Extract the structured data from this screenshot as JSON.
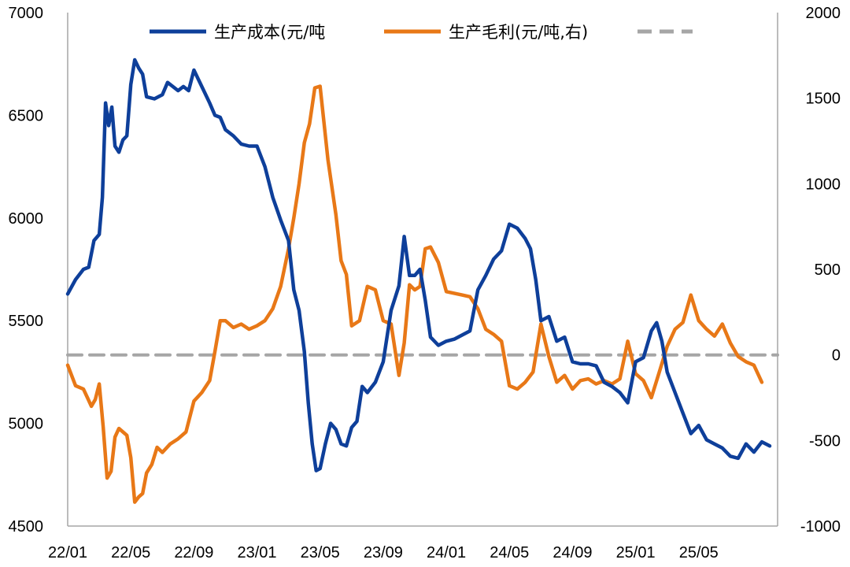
{
  "chart_data": {
    "type": "line",
    "title": "",
    "xlabel": "",
    "ylabel": "",
    "x_ticks": [
      "22/01",
      "22/05",
      "22/09",
      "23/01",
      "23/05",
      "23/09",
      "24/01",
      "24/05",
      "24/09",
      "25/01",
      "25/05"
    ],
    "y_left": {
      "min": 4500,
      "max": 7000,
      "ticks": [
        4500,
        5000,
        5500,
        6000,
        6500,
        7000
      ]
    },
    "y_right": {
      "min": -1000,
      "max": 2000,
      "ticks": [
        -1000,
        -500,
        0,
        500,
        1000,
        1500,
        2000
      ]
    },
    "grid": false,
    "legend_position": "top",
    "x_range": [
      "2022-01",
      "2025-09"
    ],
    "series": [
      {
        "name": "生产成本(元/吨",
        "axis": "left",
        "color": "#0E3F9A",
        "points": [
          [
            "2022-01",
            5630
          ],
          [
            "2022-01",
            5700
          ],
          [
            "2022-02",
            5750
          ],
          [
            "2022-02",
            5760
          ],
          [
            "2022-02",
            5890
          ],
          [
            "2022-03",
            5920
          ],
          [
            "2022-03",
            6100
          ],
          [
            "2022-03",
            6560
          ],
          [
            "2022-03",
            6450
          ],
          [
            "2022-03",
            6540
          ],
          [
            "2022-04",
            6350
          ],
          [
            "2022-04",
            6320
          ],
          [
            "2022-04",
            6380
          ],
          [
            "2022-04",
            6400
          ],
          [
            "2022-05",
            6650
          ],
          [
            "2022-05",
            6770
          ],
          [
            "2022-05",
            6730
          ],
          [
            "2022-05",
            6700
          ],
          [
            "2022-06",
            6590
          ],
          [
            "2022-06",
            6580
          ],
          [
            "2022-07",
            6600
          ],
          [
            "2022-07",
            6660
          ],
          [
            "2022-07",
            6640
          ],
          [
            "2022-08",
            6620
          ],
          [
            "2022-08",
            6640
          ],
          [
            "2022-08",
            6620
          ],
          [
            "2022-09",
            6720
          ],
          [
            "2022-09",
            6640
          ],
          [
            "2022-10",
            6560
          ],
          [
            "2022-10",
            6500
          ],
          [
            "2022-10",
            6490
          ],
          [
            "2022-11",
            6430
          ],
          [
            "2022-11",
            6400
          ],
          [
            "2022-12",
            6360
          ],
          [
            "2022-12",
            6350
          ],
          [
            "2023-01",
            6350
          ],
          [
            "2023-01",
            6250
          ],
          [
            "2023-02",
            6100
          ],
          [
            "2023-02",
            5990
          ],
          [
            "2023-03",
            5890
          ],
          [
            "2023-03",
            5650
          ],
          [
            "2023-03",
            5550
          ],
          [
            "2023-04",
            5350
          ],
          [
            "2023-04",
            5100
          ],
          [
            "2023-04",
            4900
          ],
          [
            "2023-04",
            4770
          ],
          [
            "2023-05",
            4780
          ],
          [
            "2023-05",
            4900
          ],
          [
            "2023-05",
            5000
          ],
          [
            "2023-06",
            4970
          ],
          [
            "2023-06",
            4900
          ],
          [
            "2023-06",
            4890
          ],
          [
            "2023-07",
            4980
          ],
          [
            "2023-07",
            5010
          ],
          [
            "2023-07",
            5180
          ],
          [
            "2023-08",
            5150
          ],
          [
            "2023-08",
            5200
          ],
          [
            "2023-09",
            5300
          ],
          [
            "2023-09",
            5550
          ],
          [
            "2023-10",
            5670
          ],
          [
            "2023-10",
            5910
          ],
          [
            "2023-10",
            5720
          ],
          [
            "2023-11",
            5720
          ],
          [
            "2023-11",
            5750
          ],
          [
            "2023-11",
            5600
          ],
          [
            "2023-12",
            5420
          ],
          [
            "2023-12",
            5380
          ],
          [
            "2024-01",
            5400
          ],
          [
            "2024-01",
            5410
          ],
          [
            "2024-02",
            5430
          ],
          [
            "2024-02",
            5450
          ],
          [
            "2024-03",
            5650
          ],
          [
            "2024-03",
            5720
          ],
          [
            "2024-04",
            5800
          ],
          [
            "2024-04",
            5840
          ],
          [
            "2024-05",
            5970
          ],
          [
            "2024-05",
            5950
          ],
          [
            "2024-06",
            5900
          ],
          [
            "2024-06",
            5850
          ],
          [
            "2024-06",
            5700
          ],
          [
            "2024-07",
            5500
          ],
          [
            "2024-07",
            5520
          ],
          [
            "2024-08",
            5400
          ],
          [
            "2024-08",
            5420
          ],
          [
            "2024-09",
            5300
          ],
          [
            "2024-09",
            5290
          ],
          [
            "2024-10",
            5290
          ],
          [
            "2024-10",
            5280
          ],
          [
            "2024-11",
            5200
          ],
          [
            "2024-11",
            5180
          ],
          [
            "2024-12",
            5150
          ],
          [
            "2024-12",
            5100
          ],
          [
            "2025-01",
            5300
          ],
          [
            "2025-01",
            5320
          ],
          [
            "2025-02",
            5450
          ],
          [
            "2025-02",
            5490
          ],
          [
            "2025-02",
            5400
          ],
          [
            "2025-03",
            5250
          ],
          [
            "2025-03",
            5150
          ],
          [
            "2025-04",
            5050
          ],
          [
            "2025-04",
            4950
          ],
          [
            "2025-05",
            4990
          ],
          [
            "2025-05",
            4920
          ],
          [
            "2025-06",
            4900
          ],
          [
            "2025-06",
            4880
          ],
          [
            "2025-07",
            4840
          ],
          [
            "2025-07",
            4830
          ],
          [
            "2025-08",
            4900
          ],
          [
            "2025-08",
            4860
          ],
          [
            "2025-09",
            4910
          ],
          [
            "2025-09",
            4890
          ]
        ]
      },
      {
        "name": "生产毛利(元/吨,右)",
        "axis": "right",
        "color": "#E87817",
        "points": [
          [
            "2022-01",
            -60
          ],
          [
            "2022-01",
            -180
          ],
          [
            "2022-02",
            -200
          ],
          [
            "2022-02",
            -250
          ],
          [
            "2022-02",
            -300
          ],
          [
            "2022-02",
            -260
          ],
          [
            "2022-03",
            -170
          ],
          [
            "2022-03",
            -420
          ],
          [
            "2022-03",
            -720
          ],
          [
            "2022-03",
            -680
          ],
          [
            "2022-04",
            -480
          ],
          [
            "2022-04",
            -430
          ],
          [
            "2022-04",
            -450
          ],
          [
            "2022-04",
            -470
          ],
          [
            "2022-05",
            -600
          ],
          [
            "2022-05",
            -860
          ],
          [
            "2022-05",
            -830
          ],
          [
            "2022-05",
            -810
          ],
          [
            "2022-06",
            -690
          ],
          [
            "2022-06",
            -640
          ],
          [
            "2022-06",
            -540
          ],
          [
            "2022-07",
            -570
          ],
          [
            "2022-07",
            -520
          ],
          [
            "2022-08",
            -490
          ],
          [
            "2022-08",
            -450
          ],
          [
            "2022-09",
            -270
          ],
          [
            "2022-09",
            -220
          ],
          [
            "2022-10",
            -150
          ],
          [
            "2022-10",
            20
          ],
          [
            "2022-10",
            200
          ],
          [
            "2022-11",
            200
          ],
          [
            "2022-11",
            160
          ],
          [
            "2022-12",
            180
          ],
          [
            "2022-12",
            150
          ],
          [
            "2023-01",
            170
          ],
          [
            "2023-01",
            200
          ],
          [
            "2023-02",
            270
          ],
          [
            "2023-02",
            400
          ],
          [
            "2023-03",
            620
          ],
          [
            "2023-03",
            800
          ],
          [
            "2023-03",
            1000
          ],
          [
            "2023-04",
            1240
          ],
          [
            "2023-04",
            1350
          ],
          [
            "2023-04",
            1560
          ],
          [
            "2023-05",
            1570
          ],
          [
            "2023-05",
            1140
          ],
          [
            "2023-06",
            820
          ],
          [
            "2023-06",
            550
          ],
          [
            "2023-06",
            470
          ],
          [
            "2023-07",
            170
          ],
          [
            "2023-07",
            200
          ],
          [
            "2023-08",
            400
          ],
          [
            "2023-08",
            380
          ],
          [
            "2023-09",
            200
          ],
          [
            "2023-09",
            180
          ],
          [
            "2023-10",
            -120
          ],
          [
            "2023-10",
            70
          ],
          [
            "2023-10",
            410
          ],
          [
            "2023-11",
            380
          ],
          [
            "2023-11",
            400
          ],
          [
            "2023-11",
            620
          ],
          [
            "2023-12",
            630
          ],
          [
            "2023-12",
            540
          ],
          [
            "2024-01",
            370
          ],
          [
            "2024-01",
            360
          ],
          [
            "2024-02",
            350
          ],
          [
            "2024-02",
            340
          ],
          [
            "2024-03",
            270
          ],
          [
            "2024-03",
            150
          ],
          [
            "2024-04",
            120
          ],
          [
            "2024-04",
            80
          ],
          [
            "2024-05",
            -180
          ],
          [
            "2024-05",
            -200
          ],
          [
            "2024-06",
            -160
          ],
          [
            "2024-06",
            -100
          ],
          [
            "2024-07",
            180
          ],
          [
            "2024-07",
            -10
          ],
          [
            "2024-08",
            -160
          ],
          [
            "2024-08",
            -120
          ],
          [
            "2024-09",
            -200
          ],
          [
            "2024-09",
            -150
          ],
          [
            "2024-10",
            -140
          ],
          [
            "2024-10",
            -170
          ],
          [
            "2024-11",
            -150
          ],
          [
            "2024-11",
            -170
          ],
          [
            "2024-12",
            -140
          ],
          [
            "2024-12",
            80
          ],
          [
            "2025-01",
            -110
          ],
          [
            "2025-01",
            -150
          ],
          [
            "2025-02",
            -250
          ],
          [
            "2025-02",
            -100
          ],
          [
            "2025-03",
            50
          ],
          [
            "2025-03",
            150
          ],
          [
            "2025-04",
            190
          ],
          [
            "2025-04",
            350
          ],
          [
            "2025-05",
            200
          ],
          [
            "2025-05",
            150
          ],
          [
            "2025-06",
            110
          ],
          [
            "2025-06",
            180
          ],
          [
            "2025-07",
            70
          ],
          [
            "2025-07",
            -10
          ],
          [
            "2025-08",
            -40
          ],
          [
            "2025-08",
            -60
          ],
          [
            "2025-09",
            -160
          ]
        ]
      },
      {
        "name": "",
        "axis": "right",
        "color": "#A6A6A6",
        "dash": "dashed",
        "points": [
          [
            "2022-01",
            0
          ],
          [
            "2025-09",
            0
          ]
        ]
      }
    ]
  },
  "legend": {
    "items": [
      "生产成本(元/吨",
      "生产毛利(元/吨,右)",
      ""
    ]
  }
}
